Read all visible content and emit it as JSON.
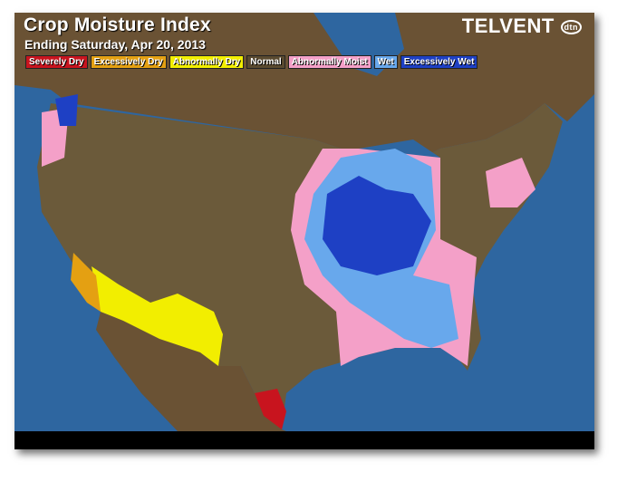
{
  "header": {
    "title": "Crop Moisture Index",
    "subtitle": "Ending Saturday, Apr 20, 2013",
    "logo": "TELVENT",
    "logo_mark": "dtn"
  },
  "legend": [
    {
      "label": "Severely Dry",
      "color": "#c8141e"
    },
    {
      "label": "Excessively Dry",
      "color": "#e4a012"
    },
    {
      "label": "Abnormally Dry",
      "color": "#f2ee00"
    },
    {
      "label": "Normal",
      "color": "#5a4a30"
    },
    {
      "label": "Abnormally Moist",
      "color": "#f4a0c8"
    },
    {
      "label": "Wet",
      "color": "#68a8ec"
    },
    {
      "label": "Excessively Wet",
      "color": "#1e40c4"
    }
  ],
  "colors": {
    "ocean": "#2e66a0",
    "land": "#6a5234",
    "us_normal": "#6b5a3a"
  }
}
